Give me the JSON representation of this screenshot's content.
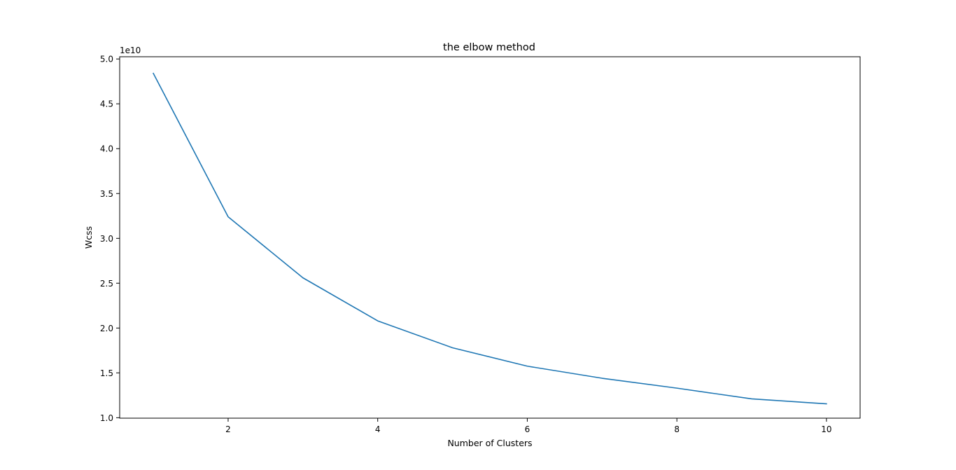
{
  "chart_data": {
    "type": "line",
    "title": "the elbow method",
    "xlabel": "Number of Clusters",
    "ylabel": "Wcss",
    "y_offset_text": "1e10",
    "y_scale_multiplier": 10000000000.0,
    "xlim": [
      0.55,
      10.45
    ],
    "ylim": [
      0.995,
      5.025
    ],
    "x_ticks": [
      2,
      4,
      6,
      8,
      10
    ],
    "y_ticks": [
      1.0,
      1.5,
      2.0,
      2.5,
      3.0,
      3.5,
      4.0,
      4.5,
      5.0
    ],
    "x_tick_labels": [
      "2",
      "4",
      "6",
      "8",
      "10"
    ],
    "y_tick_labels": [
      "1.0",
      "1.5",
      "2.0",
      "2.5",
      "3.0",
      "3.5",
      "4.0",
      "4.5",
      "5.0"
    ],
    "grid": false,
    "series": [
      {
        "color": "#1f77b4",
        "x": [
          1,
          2,
          3,
          4,
          5,
          6,
          7,
          8,
          9,
          10
        ],
        "values": [
          4.84,
          3.24,
          2.56,
          2.08,
          1.78,
          1.575,
          1.44,
          1.33,
          1.21,
          1.155
        ]
      }
    ]
  }
}
